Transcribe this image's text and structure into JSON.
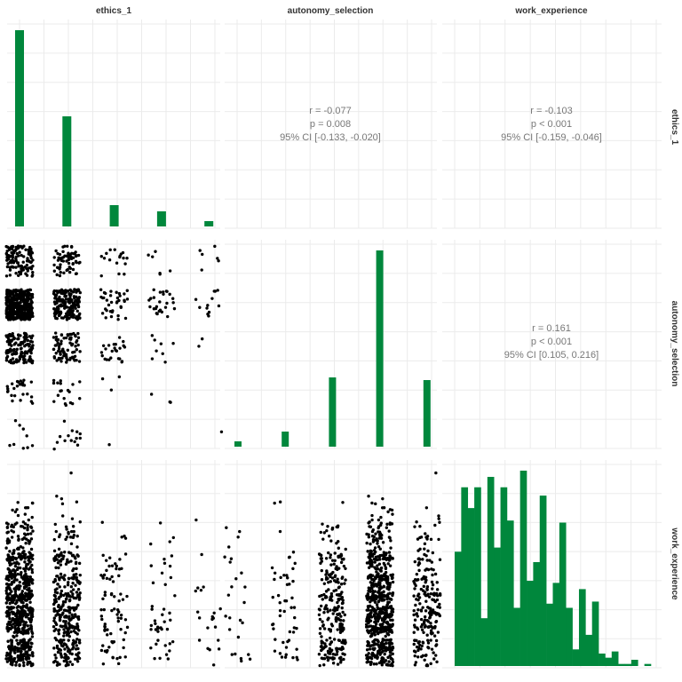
{
  "chart_data": {
    "type": "scatter-matrix",
    "variables": [
      "ethics_1",
      "autonomy_selection",
      "work_experience"
    ],
    "colors": {
      "bar": "#00873c",
      "point": "#000000",
      "grid": "#ebebeb",
      "text": "#777777"
    },
    "grid": true,
    "diagonal": [
      {
        "variable": "ethics_1",
        "type": "bar",
        "categories": [
          1,
          2,
          3,
          4,
          5
        ],
        "values": [
          663,
          372,
          72,
          51,
          18
        ]
      },
      {
        "variable": "autonomy_selection",
        "type": "bar",
        "categories": [
          1,
          2,
          3,
          4,
          5
        ],
        "values": [
          18,
          51,
          234,
          663,
          225
        ]
      },
      {
        "variable": "work_experience",
        "type": "histogram",
        "bins": 30,
        "values": [
          55,
          86,
          76,
          86,
          23,
          91,
          57,
          86,
          70,
          28,
          94,
          41,
          50,
          82,
          30,
          40,
          69,
          28,
          8,
          37,
          15,
          31,
          6,
          4,
          7,
          1,
          1,
          3,
          0,
          1
        ]
      }
    ],
    "correlations": [
      {
        "pair": [
          "ethics_1",
          "autonomy_selection"
        ],
        "r": "r = -0.077",
        "p": "p = 0.008",
        "ci": "95% CI [-0.133, -0.020]"
      },
      {
        "pair": [
          "ethics_1",
          "work_experience"
        ],
        "r": "r = -0.103",
        "p": "p < 0.001",
        "ci": "95% CI [-0.159, -0.046]"
      },
      {
        "pair": [
          "autonomy_selection",
          "work_experience"
        ],
        "r": "r = 0.161",
        "p": "p < 0.001",
        "ci": "95% CI [0.105, 0.216]"
      }
    ],
    "lower_panels": [
      {
        "x": "ethics_1",
        "y": "autonomy_selection",
        "type": "scatter",
        "jitter": true
      },
      {
        "x": "ethics_1",
        "y": "work_experience",
        "type": "scatter",
        "jitter": true
      },
      {
        "x": "autonomy_selection",
        "y": "work_experience",
        "type": "scatter",
        "jitter": true
      }
    ]
  }
}
